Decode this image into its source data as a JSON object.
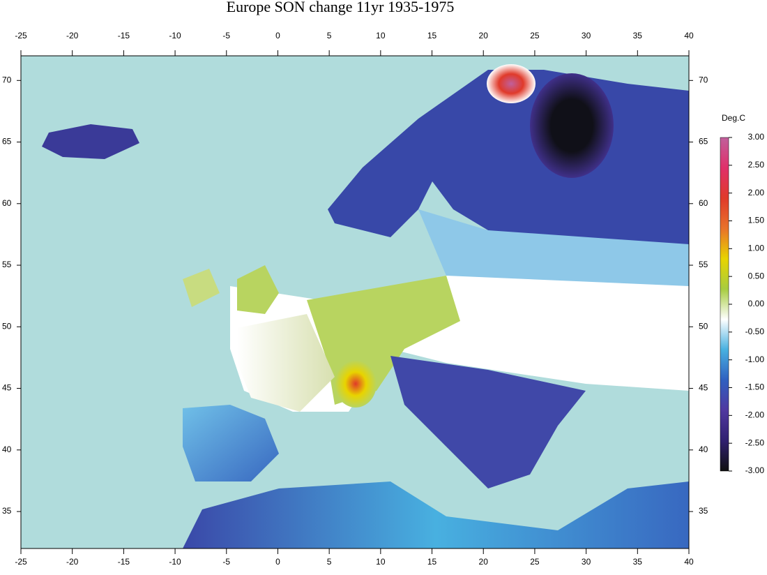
{
  "chart_data": {
    "type": "map",
    "title": "Europe SON change 11yr 1935-1975",
    "xlim": [
      -25,
      40
    ],
    "ylim": [
      32,
      72
    ],
    "xticks": [
      -25,
      -20,
      -15,
      -10,
      -5,
      0,
      5,
      10,
      15,
      20,
      25,
      30,
      35,
      40
    ],
    "yticks": [
      35,
      40,
      45,
      50,
      55,
      60,
      65,
      70
    ],
    "colorbar": {
      "label": "Deg.C",
      "lim": [
        -3,
        3
      ],
      "ticks": [
        {
          "value": 3,
          "label": "3.00"
        },
        {
          "value": 2.5,
          "label": "2.50"
        },
        {
          "value": 2,
          "label": "2.00"
        },
        {
          "value": 1.5,
          "label": "1.50"
        },
        {
          "value": 1,
          "label": "1.00"
        },
        {
          "value": 0.5,
          "label": "0.50"
        },
        {
          "value": 0,
          "label": "0.00"
        },
        {
          "value": -0.5,
          "label": "-0.50"
        },
        {
          "value": -1,
          "label": "-1.00"
        },
        {
          "value": -1.5,
          "label": "-1.50"
        },
        {
          "value": -2,
          "label": "-2.00"
        },
        {
          "value": -2.5,
          "label": "-2.50"
        },
        {
          "value": -3,
          "label": "-3.00"
        }
      ],
      "colors": [
        "#c0609c",
        "#e0306a",
        "#e03a2a",
        "#e8722a",
        "#e8d400",
        "#a8cc40",
        "#ffffff",
        "#48b0e0",
        "#3060c0",
        "#5038a0",
        "#302070",
        "#101010"
      ]
    }
  }
}
